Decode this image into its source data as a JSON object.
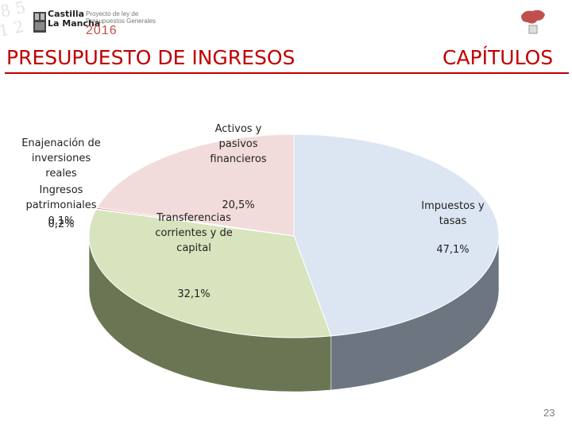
{
  "header": {
    "logo_line1": "Castilla",
    "logo_line2": "La Mancha",
    "sub_line1": "Proyecto de ley de",
    "sub_line2": "Presupuestos Generales",
    "year": "2016"
  },
  "title_left": "PRESUPUESTO DE INGRESOS",
  "title_right": "CAPÍTULOS",
  "page_number": "23",
  "chart_data": {
    "type": "pie",
    "style": "3d",
    "slices": [
      {
        "label": "Impuestos y tasas",
        "label_lines": [
          "Impuestos y",
          "tasas"
        ],
        "value_label": "47,1%",
        "value": 47.1,
        "color": "#dce6f2",
        "side_color": "#6d7581"
      },
      {
        "label": "Transferencias corrientes y de capital",
        "label_lines": [
          "Transferencias",
          "corrientes y de",
          "capital"
        ],
        "value_label": "32,1%",
        "value": 32.1,
        "color": "#d7e4bd",
        "side_color": "#6a7653"
      },
      {
        "label": "Enajenación de inversiones reales",
        "label_lines": [
          "Enajenación de",
          "inversiones",
          "reales"
        ],
        "value_label": "0,1%",
        "value": 0.1,
        "color": "#b3a2c7",
        "side_color": "#5b4b6e"
      },
      {
        "label": "Ingresos patrimoniales",
        "label_lines": [
          "Ingresos",
          "patrimoniales"
        ],
        "value_label": "0,2%",
        "value": 0.2,
        "color": "#c0504d",
        "side_color": "#6e2c2a"
      },
      {
        "label": "Activos y pasivos financieros",
        "label_lines": [
          "Activos y",
          "pasivos",
          "financieros"
        ],
        "value_label": "20,5%",
        "value": 20.5,
        "color": "#f2dcdb",
        "side_color": "#7a6463"
      }
    ]
  }
}
